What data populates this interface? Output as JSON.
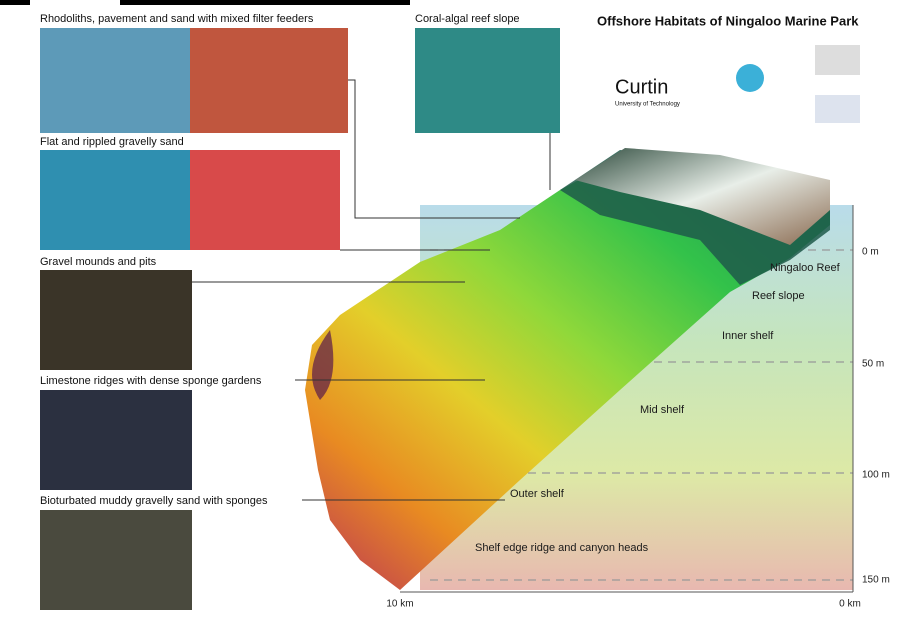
{
  "title": "Offshore Habitats of Ningaloo Marine Park",
  "habitats": [
    "Rhodoliths, pavement and sand with mixed filter feeders",
    "Flat and rippled gravelly sand",
    "Gravel mounds and pits",
    "Limestone ridges with dense sponge gardens",
    "Bioturbated muddy gravelly sand with sponges",
    "Coral-algal reef slope"
  ],
  "zones": [
    "Ningaloo Reef",
    "Reef slope",
    "Inner shelf",
    "Mid shelf",
    "Outer shelf",
    "Shelf edge ridge and canyon heads"
  ],
  "depths": [
    "0 m",
    "50 m",
    "100 m",
    "150 m"
  ],
  "distances": [
    "10 km",
    "0 km"
  ],
  "logos": [
    "Curtin",
    "University of Technology"
  ]
}
